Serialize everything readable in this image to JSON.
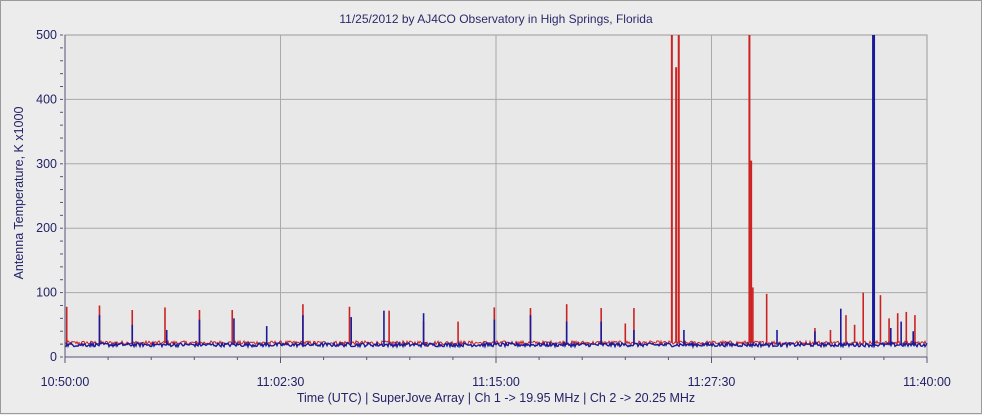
{
  "chart_data": {
    "type": "line",
    "title": "11/25/2012  by  AJ4CO Observatory  in  High Springs, Florida",
    "ylabel": "Antenna Temperature, K x1000",
    "xlabel": "Time (UTC)  |  SuperJove Array  |  Ch 1 -> 19.95 MHz  |  Ch 2 -> 20.25 MHz",
    "xlim_minutes": [
      0,
      50
    ],
    "ylim": [
      0,
      500
    ],
    "y_ticks": [
      0,
      100,
      200,
      300,
      400,
      500
    ],
    "x_ticks": [
      {
        "minute": 0,
        "label": "10:50:00"
      },
      {
        "minute": 12.5,
        "label": "11:02:30"
      },
      {
        "minute": 25,
        "label": "11:15:00"
      },
      {
        "minute": 37.5,
        "label": "11:27:30"
      },
      {
        "minute": 50,
        "label": "11:40:00"
      }
    ],
    "grid": true,
    "baseline": {
      "ch1": 22,
      "ch2": 19
    },
    "series": [
      {
        "name": "Ch 1 -> 19.95 MHz",
        "color": "#cc2222",
        "spikes": [
          {
            "x": 0.1,
            "y": 78
          },
          {
            "x": 2.0,
            "y": 80
          },
          {
            "x": 3.9,
            "y": 73
          },
          {
            "x": 5.8,
            "y": 77
          },
          {
            "x": 7.8,
            "y": 73
          },
          {
            "x": 9.7,
            "y": 73
          },
          {
            "x": 13.8,
            "y": 82
          },
          {
            "x": 16.5,
            "y": 78
          },
          {
            "x": 18.8,
            "y": 72
          },
          {
            "x": 20.8,
            "y": 55
          },
          {
            "x": 22.8,
            "y": 55
          },
          {
            "x": 24.9,
            "y": 77
          },
          {
            "x": 27.0,
            "y": 76
          },
          {
            "x": 29.1,
            "y": 82
          },
          {
            "x": 31.1,
            "y": 76
          },
          {
            "x": 32.5,
            "y": 52
          },
          {
            "x": 33.0,
            "y": 76
          },
          {
            "x": 35.2,
            "y": 500
          },
          {
            "x": 35.45,
            "y": 450
          },
          {
            "x": 35.6,
            "y": 500
          },
          {
            "x": 39.7,
            "y": 500
          },
          {
            "x": 39.8,
            "y": 305
          },
          {
            "x": 39.9,
            "y": 108
          },
          {
            "x": 40.7,
            "y": 98
          },
          {
            "x": 43.5,
            "y": 45
          },
          {
            "x": 44.4,
            "y": 42
          },
          {
            "x": 45.3,
            "y": 65
          },
          {
            "x": 45.8,
            "y": 50
          },
          {
            "x": 46.3,
            "y": 100
          },
          {
            "x": 46.9,
            "y": 58
          },
          {
            "x": 47.3,
            "y": 96
          },
          {
            "x": 47.8,
            "y": 60
          },
          {
            "x": 48.3,
            "y": 68
          },
          {
            "x": 48.8,
            "y": 70
          },
          {
            "x": 49.3,
            "y": 65
          }
        ]
      },
      {
        "name": "Ch 2 -> 20.25 MHz",
        "color": "#1a1a99",
        "spikes": [
          {
            "x": 2.0,
            "y": 65
          },
          {
            "x": 3.9,
            "y": 50
          },
          {
            "x": 5.9,
            "y": 42
          },
          {
            "x": 7.8,
            "y": 58
          },
          {
            "x": 9.8,
            "y": 60
          },
          {
            "x": 11.7,
            "y": 48
          },
          {
            "x": 13.8,
            "y": 65
          },
          {
            "x": 16.6,
            "y": 62
          },
          {
            "x": 18.5,
            "y": 72
          },
          {
            "x": 20.8,
            "y": 68
          },
          {
            "x": 24.9,
            "y": 58
          },
          {
            "x": 27.0,
            "y": 65
          },
          {
            "x": 29.1,
            "y": 55
          },
          {
            "x": 31.1,
            "y": 55
          },
          {
            "x": 33.0,
            "y": 42
          },
          {
            "x": 35.9,
            "y": 42
          },
          {
            "x": 41.3,
            "y": 42
          },
          {
            "x": 43.5,
            "y": 40
          },
          {
            "x": 45.0,
            "y": 75
          },
          {
            "x": 46.9,
            "y": 500
          },
          {
            "x": 47.9,
            "y": 45
          },
          {
            "x": 48.5,
            "y": 55
          },
          {
            "x": 49.2,
            "y": 40
          }
        ]
      }
    ]
  }
}
